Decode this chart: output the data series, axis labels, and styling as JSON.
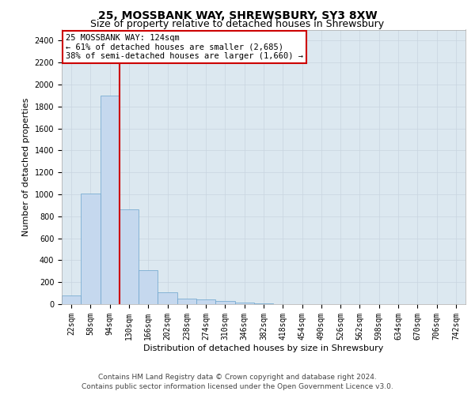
{
  "title": "25, MOSSBANK WAY, SHREWSBURY, SY3 8XW",
  "subtitle": "Size of property relative to detached houses in Shrewsbury",
  "xlabel": "Distribution of detached houses by size in Shrewsbury",
  "ylabel": "Number of detached properties",
  "footer_line1": "Contains HM Land Registry data © Crown copyright and database right 2024.",
  "footer_line2": "Contains public sector information licensed under the Open Government Licence v3.0.",
  "bin_labels": [
    "22sqm",
    "58sqm",
    "94sqm",
    "130sqm",
    "166sqm",
    "202sqm",
    "238sqm",
    "274sqm",
    "310sqm",
    "346sqm",
    "382sqm",
    "418sqm",
    "454sqm",
    "490sqm",
    "526sqm",
    "562sqm",
    "598sqm",
    "634sqm",
    "670sqm",
    "706sqm",
    "742sqm"
  ],
  "bar_heights": [
    80,
    1010,
    1900,
    860,
    310,
    110,
    50,
    45,
    30,
    15,
    5,
    3,
    2,
    1,
    0,
    0,
    0,
    0,
    0,
    0,
    0
  ],
  "bar_color": "#c5d8ee",
  "bar_edge_color": "#6aa3cc",
  "annotation_line1": "25 MOSSBANK WAY: 124sqm",
  "annotation_line2": "← 61% of detached houses are smaller (2,685)",
  "annotation_line3": "38% of semi-detached houses are larger (1,660) →",
  "ylim": [
    0,
    2500
  ],
  "yticks": [
    0,
    200,
    400,
    600,
    800,
    1000,
    1200,
    1400,
    1600,
    1800,
    2000,
    2200,
    2400
  ],
  "grid_color": "#c8d4e0",
  "background_color": "#dce8f0",
  "annotation_box_edge": "#cc0000",
  "red_line_color": "#cc0000",
  "title_fontsize": 10,
  "subtitle_fontsize": 9,
  "axis_label_fontsize": 8,
  "tick_fontsize": 7,
  "annotation_fontsize": 7.5,
  "footer_fontsize": 6.5
}
